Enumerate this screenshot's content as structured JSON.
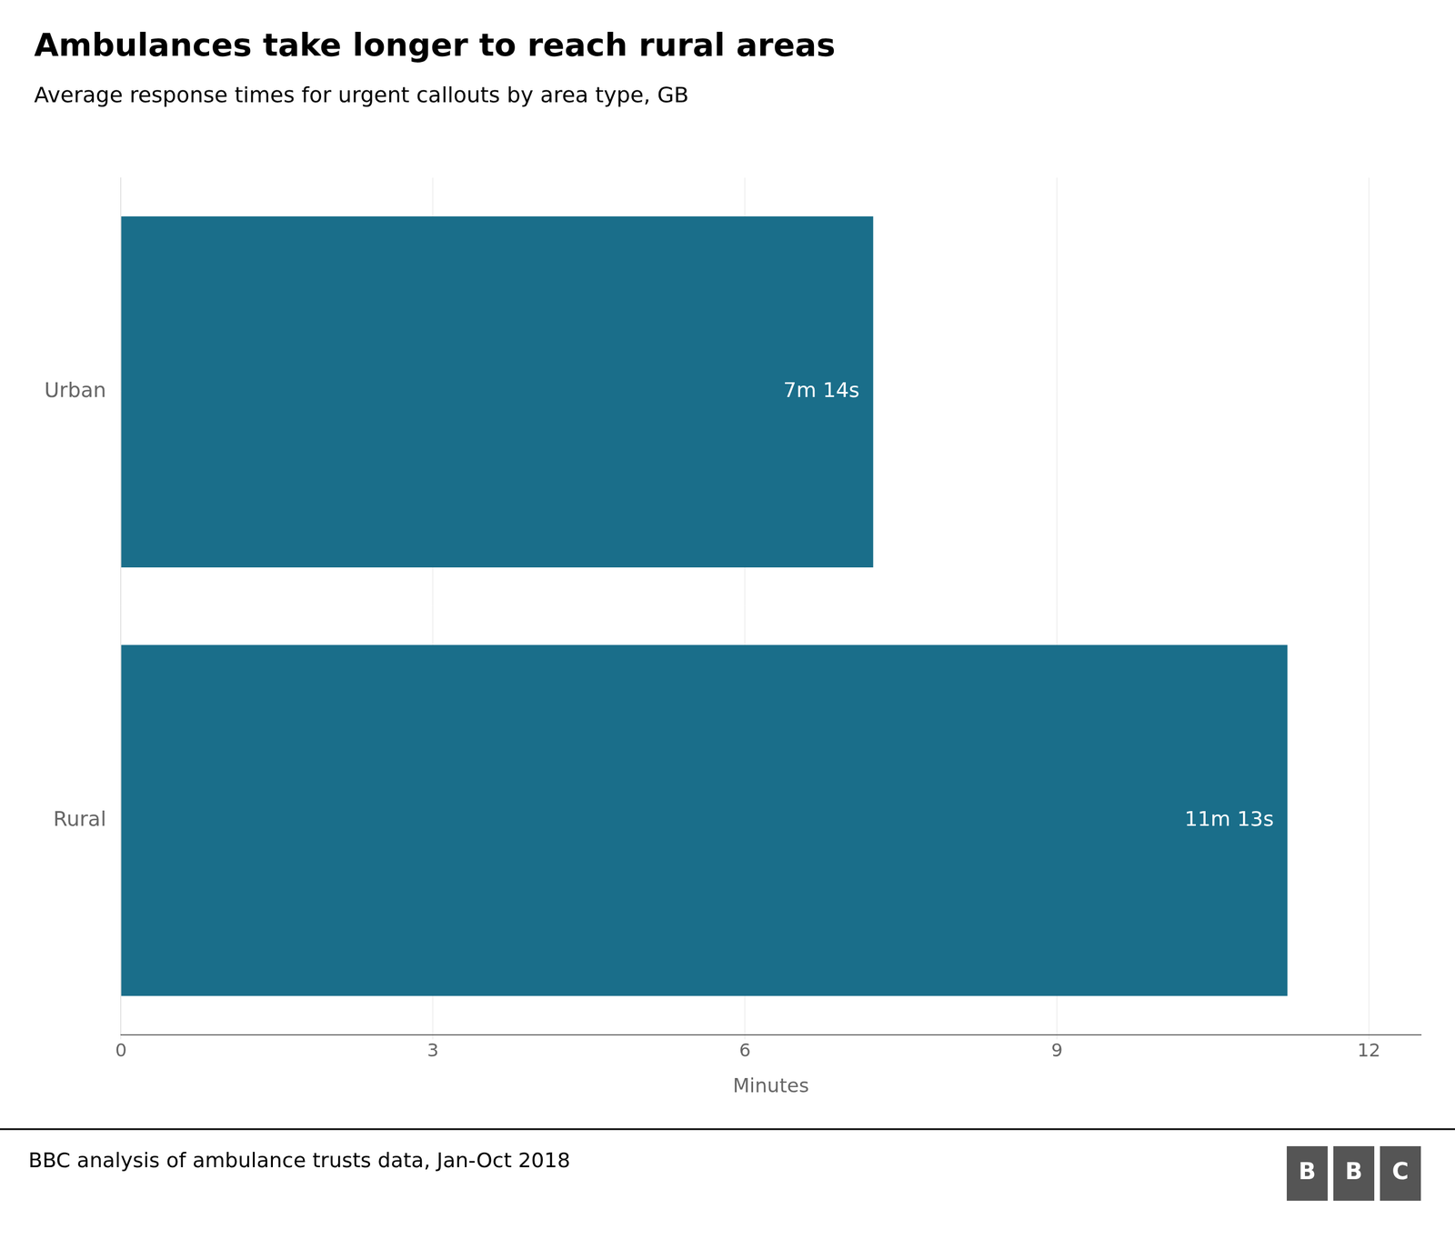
{
  "chart_data": {
    "type": "bar",
    "orientation": "horizontal",
    "title": "Ambulances take longer to reach rural areas",
    "subtitle": "Average response times for urgent callouts by area type, GB",
    "categories": [
      "Urban",
      "Rural"
    ],
    "values": [
      7.2333,
      11.2167
    ],
    "value_labels": [
      "7m 14s",
      "11m 13s"
    ],
    "data_labels": true,
    "color": "#1a6e8a",
    "xlabel": "Minutes",
    "xlim": [
      0,
      12.5
    ],
    "xticks": [
      0,
      3,
      6,
      9,
      12
    ],
    "grid": true,
    "footnote": "BBC analysis of ambulance trusts data, Jan-Oct 2018",
    "logo": "BBC"
  }
}
